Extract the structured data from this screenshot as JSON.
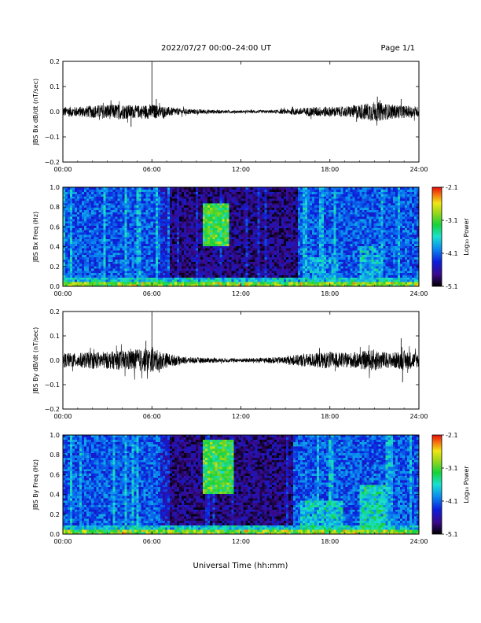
{
  "header": {
    "title": "2022/07/27  00:00–24:00 UT",
    "page": "Page 1/1"
  },
  "xlabel": "Universal Time (hh:mm)",
  "chart_data": [
    {
      "type": "line",
      "ylabel": "JBS Bx dB/dt (nT/sec)",
      "x_range_hours": [
        0,
        24
      ],
      "x_ticks": [
        "00:00",
        "06:00",
        "12:00",
        "18:00",
        "24:00"
      ],
      "ylim": [
        -0.2,
        0.2
      ],
      "y_ticks": [
        "0.2",
        "0.1",
        "0.0",
        "−0.1",
        "−0.2"
      ],
      "series": [
        {
          "envelope": [
            [
              0,
              0.02
            ],
            [
              1,
              0.02
            ],
            [
              2,
              0.025
            ],
            [
              3,
              0.03
            ],
            [
              4,
              0.03
            ],
            [
              5,
              0.025
            ],
            [
              6,
              0.03
            ],
            [
              7,
              0.02
            ],
            [
              8,
              0.012
            ],
            [
              9,
              0.01
            ],
            [
              10,
              0.008
            ],
            [
              11,
              0.006
            ],
            [
              12,
              0.005
            ],
            [
              13,
              0.006
            ],
            [
              14,
              0.006
            ],
            [
              15,
              0.01
            ],
            [
              16,
              0.015
            ],
            [
              17,
              0.02
            ],
            [
              18,
              0.02
            ],
            [
              19,
              0.02
            ],
            [
              20,
              0.03
            ],
            [
              21,
              0.04
            ],
            [
              22,
              0.03
            ],
            [
              23,
              0.025
            ],
            [
              24,
              0.02
            ]
          ],
          "spikes": [
            [
              6.0,
              0.19
            ],
            [
              4.6,
              -0.06
            ],
            [
              6.3,
              0.05
            ],
            [
              21.2,
              0.06
            ],
            [
              19.8,
              -0.04
            ],
            [
              22.8,
              0.05
            ]
          ]
        }
      ]
    },
    {
      "type": "heatmap",
      "ylabel": "JBS Bx Freq (Hz)",
      "x_range_hours": [
        0,
        24
      ],
      "x_ticks": [
        "00:00",
        "06:00",
        "12:00",
        "18:00",
        "24:00"
      ],
      "ylim": [
        0,
        1.0
      ],
      "y_ticks": [
        "1.0",
        "0.8",
        "0.6",
        "0.4",
        "0.2",
        "0.0"
      ],
      "colorbar": {
        "label": "Log₁₀ Power",
        "ticks": [
          "-2.1",
          "-3.1",
          "-4.1",
          "-5.1"
        ],
        "range": [
          -5.1,
          -2.1
        ]
      },
      "quiet_interval_hours": [
        7.2,
        15.8
      ],
      "enhancements": [
        {
          "t": [
            9.5,
            11.2
          ],
          "f": [
            0.4,
            0.85
          ],
          "level": -3.2
        },
        {
          "t": [
            16.5,
            18.5
          ],
          "f": [
            0.0,
            0.3
          ],
          "level": -3.9
        },
        {
          "t": [
            20.0,
            21.5
          ],
          "f": [
            0.05,
            0.4
          ],
          "level": -3.8
        }
      ]
    },
    {
      "type": "line",
      "ylabel": "JBS By dB/dt (nT/sec)",
      "x_range_hours": [
        0,
        24
      ],
      "x_ticks": [
        "00:00",
        "06:00",
        "12:00",
        "18:00",
        "24:00"
      ],
      "ylim": [
        -0.2,
        0.2
      ],
      "y_ticks": [
        "0.2",
        "0.1",
        "0.0",
        "−0.1",
        "−0.2"
      ],
      "series": [
        {
          "envelope": [
            [
              0,
              0.03
            ],
            [
              1,
              0.03
            ],
            [
              2,
              0.035
            ],
            [
              3,
              0.035
            ],
            [
              4,
              0.04
            ],
            [
              5,
              0.045
            ],
            [
              6,
              0.05
            ],
            [
              7,
              0.03
            ],
            [
              8,
              0.015
            ],
            [
              9,
              0.012
            ],
            [
              10,
              0.01
            ],
            [
              11,
              0.008
            ],
            [
              12,
              0.008
            ],
            [
              13,
              0.01
            ],
            [
              14,
              0.012
            ],
            [
              15,
              0.015
            ],
            [
              16,
              0.025
            ],
            [
              17,
              0.03
            ],
            [
              18,
              0.035
            ],
            [
              19,
              0.03
            ],
            [
              20,
              0.035
            ],
            [
              21,
              0.045
            ],
            [
              22,
              0.03
            ],
            [
              23,
              0.04
            ],
            [
              24,
              0.03
            ]
          ],
          "spikes": [
            [
              6.0,
              0.19
            ],
            [
              5.6,
              0.08
            ],
            [
              6.5,
              -0.05
            ],
            [
              22.8,
              0.09
            ],
            [
              22.9,
              -0.09
            ],
            [
              17.3,
              0.05
            ]
          ]
        }
      ]
    },
    {
      "type": "heatmap",
      "ylabel": "JBS By Freq (Hz)",
      "x_range_hours": [
        0,
        24
      ],
      "x_ticks": [
        "00:00",
        "06:00",
        "12:00",
        "18:00",
        "24:00"
      ],
      "ylim": [
        0,
        1.0
      ],
      "y_ticks": [
        "1.0",
        "0.8",
        "0.6",
        "0.4",
        "0.2",
        "0.0"
      ],
      "colorbar": {
        "label": "Log₁₀ Power",
        "ticks": [
          "-2.1",
          "-3.1",
          "-4.1",
          "-5.1"
        ],
        "range": [
          -5.1,
          -2.1
        ]
      },
      "quiet_interval_hours": [
        7.2,
        15.5
      ],
      "enhancements": [
        {
          "t": [
            9.5,
            11.5
          ],
          "f": [
            0.4,
            0.95
          ],
          "level": -3.2
        },
        {
          "t": [
            16.0,
            18.8
          ],
          "f": [
            0.0,
            0.35
          ],
          "level": -3.7
        },
        {
          "t": [
            20.0,
            21.8
          ],
          "f": [
            0.05,
            0.5
          ],
          "level": -3.6
        }
      ]
    }
  ]
}
